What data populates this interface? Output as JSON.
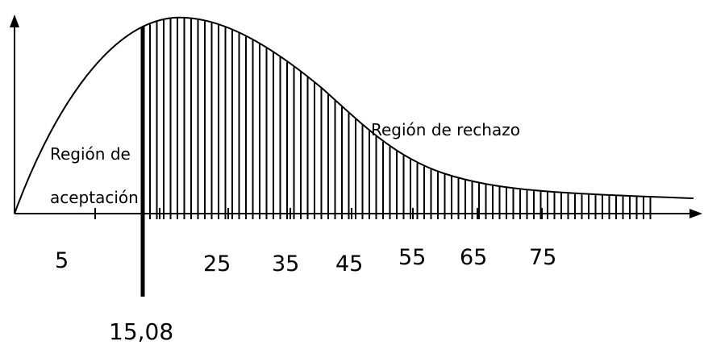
{
  "diagram": {
    "acceptance_label_line1": "Región de",
    "acceptance_label_line2": "aceptación",
    "rejection_label": "Región de rechazo",
    "critical_value": "15,08",
    "tick_labels": [
      "5",
      "25",
      "35",
      "45",
      "55",
      "65",
      "75"
    ]
  }
}
